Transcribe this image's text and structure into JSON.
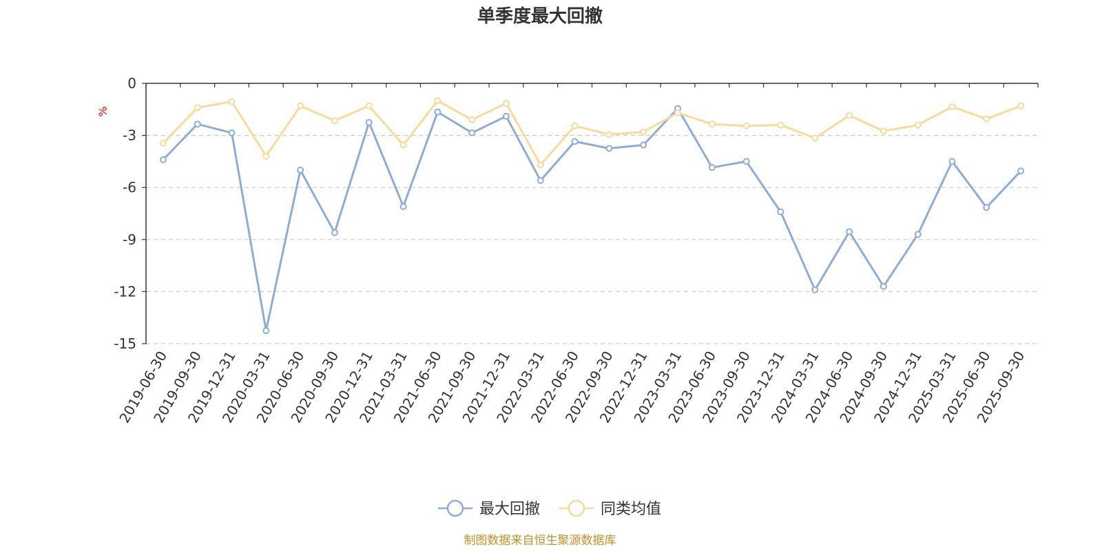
{
  "chart_data": {
    "type": "line",
    "title": "单季度最大回撤",
    "ylabel": "%",
    "xlabel": "",
    "ylim": [
      -15,
      0
    ],
    "yticks": [
      0,
      -3,
      -6,
      -9,
      -12,
      -15
    ],
    "grid": true,
    "legend_position": "bottom",
    "categories": [
      "2019-06-30",
      "2019-09-30",
      "2019-12-31",
      "2020-03-31",
      "2020-06-30",
      "2020-09-30",
      "2020-12-31",
      "2021-03-31",
      "2021-06-30",
      "2021-09-30",
      "2021-12-31",
      "2022-03-31",
      "2022-06-30",
      "2022-09-30",
      "2022-12-31",
      "2023-03-31",
      "2023-06-30",
      "2023-09-30",
      "2023-12-31",
      "2024-03-31",
      "2024-06-30",
      "2024-09-30",
      "2024-12-31",
      "2025-03-31",
      "2025-06-30",
      "2025-09-30"
    ],
    "series": [
      {
        "name": "最大回撤",
        "color": "#8eacd8",
        "values": [
          -4.4,
          -2.35,
          -2.85,
          -14.25,
          -5.0,
          -8.6,
          -2.25,
          -7.1,
          -1.65,
          -2.85,
          -1.9,
          -5.6,
          -3.35,
          -3.75,
          -3.55,
          -1.45,
          -4.85,
          -4.5,
          -7.4,
          -11.9,
          -8.55,
          -11.7,
          -8.7,
          -4.5,
          -7.15,
          -5.05
        ]
      },
      {
        "name": "同类均值",
        "color": "#fbd99a",
        "values": [
          -3.45,
          -1.4,
          -1.05,
          -4.2,
          -1.3,
          -2.15,
          -1.3,
          -3.55,
          -1.0,
          -2.1,
          -1.15,
          -4.7,
          -2.45,
          -2.95,
          -2.8,
          -1.7,
          -2.35,
          -2.45,
          -2.4,
          -3.15,
          -1.85,
          -2.75,
          -2.4,
          -1.35,
          -2.05,
          -1.3
        ]
      }
    ]
  },
  "source_text": "制图数据来自恒生聚源数据库"
}
